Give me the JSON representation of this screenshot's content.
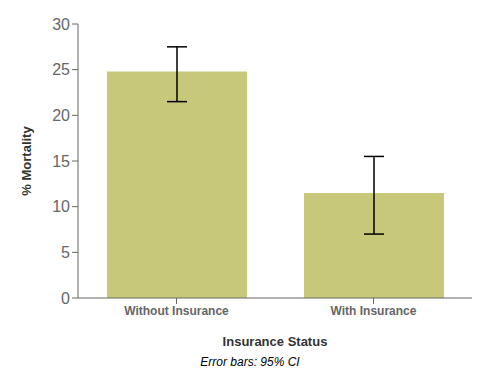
{
  "chart_data": {
    "type": "bar",
    "categories": [
      "Without Insurance",
      "With Insurance"
    ],
    "values": [
      24.8,
      11.5
    ],
    "error_upper": [
      2.7,
      4.0
    ],
    "error_lower": [
      3.3,
      4.5
    ],
    "color": "#c8c87a",
    "ylabel": "% Mortality",
    "xlabel": "Insurance Status",
    "subtitle": "Error bars: 95% CI",
    "ylim": [
      0,
      30
    ],
    "yticks": [
      0,
      5,
      10,
      15,
      20,
      25,
      30
    ],
    "grid": false
  }
}
